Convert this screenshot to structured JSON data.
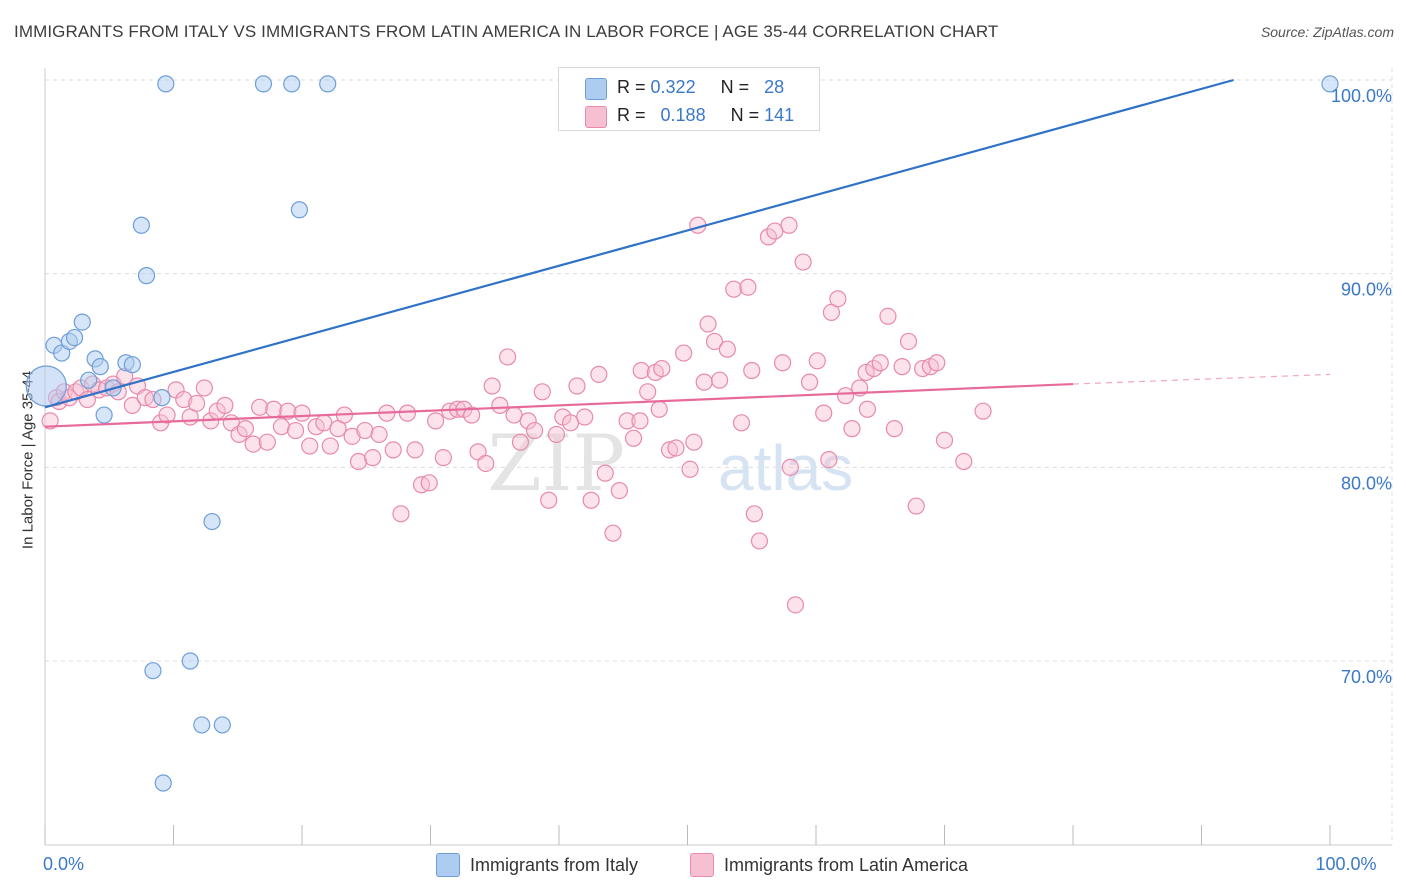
{
  "header": {
    "title": "IMMIGRANTS FROM ITALY VS IMMIGRANTS FROM LATIN AMERICA IN LABOR FORCE | AGE 35-44 CORRELATION CHART",
    "source": "Source: ZipAtlas.com"
  },
  "colors": {
    "italy_fill": "#aecbf0",
    "italy_stroke": "#6e9fd9",
    "italy_line": "#2f72c6",
    "latam_fill": "#f6bfd2",
    "latam_stroke": "#e88aab",
    "latam_line": "#e76b9a",
    "tick_label": "#3a78c9",
    "grid": "#dcdcdc"
  },
  "legend_stats": {
    "italy": {
      "r_label": "R =",
      "r_value": "0.322",
      "n_label": "N =",
      "n_value": "28"
    },
    "latam": {
      "r_label": "R =",
      "r_value": "0.188",
      "n_label": "N =",
      "n_value": "141"
    }
  },
  "watermark": {
    "part1": "ZIP",
    "part2": "atlas"
  },
  "chart_data": {
    "type": "scatter",
    "title": "IMMIGRANTS FROM ITALY VS IMMIGRANTS FROM LATIN AMERICA IN LABOR FORCE | AGE 35-44 CORRELATION CHART",
    "xlabel": "",
    "ylabel": "In Labor Force | Age 35-44",
    "xlim": [
      0,
      100
    ],
    "ylim": [
      60.5,
      100.5
    ],
    "x_tick_labels": [
      {
        "value": 0,
        "label": "0.0%"
      },
      {
        "value": 100,
        "label": "100.0%"
      }
    ],
    "y_ticks": [
      {
        "value": 70,
        "label": "70.0%"
      },
      {
        "value": 80,
        "label": "80.0%"
      },
      {
        "value": 90,
        "label": "90.0%"
      },
      {
        "value": 100,
        "label": "100.0%"
      }
    ],
    "x_minor_ticks": [
      0,
      10,
      20,
      30,
      40,
      50,
      60,
      70,
      80,
      90,
      100
    ],
    "legend": [
      "Immigrants from Italy",
      "Immigrants from Latin America"
    ],
    "series": [
      {
        "name": "Immigrants from Italy",
        "points": [
          [
            0.1,
            84.2
          ],
          [
            0.7,
            86.3
          ],
          [
            1.3,
            85.9
          ],
          [
            1.9,
            86.5
          ],
          [
            2.3,
            86.7
          ],
          [
            2.9,
            87.5
          ],
          [
            3.4,
            84.5
          ],
          [
            3.9,
            85.6
          ],
          [
            4.3,
            85.2
          ],
          [
            4.6,
            82.7
          ],
          [
            5.3,
            84.1
          ],
          [
            6.3,
            85.4
          ],
          [
            6.8,
            85.3
          ],
          [
            7.5,
            92.5
          ],
          [
            7.9,
            89.9
          ],
          [
            8.4,
            69.5
          ],
          [
            9.1,
            83.6
          ],
          [
            9.4,
            99.8
          ],
          [
            9.2,
            63.7
          ],
          [
            11.3,
            70.0
          ],
          [
            12.2,
            66.7
          ],
          [
            13.0,
            77.2
          ],
          [
            13.8,
            66.7
          ],
          [
            17.0,
            99.8
          ],
          [
            19.2,
            99.8
          ],
          [
            19.8,
            93.3
          ],
          [
            22.0,
            99.8
          ],
          [
            100.0,
            99.8
          ]
        ],
        "trend": {
          "x": [
            0,
            92.5
          ],
          "y": [
            83.1,
            100.0
          ]
        }
      },
      {
        "name": "Immigrants from Latin America",
        "points": [
          [
            0.4,
            82.4
          ],
          [
            0.9,
            83.6
          ],
          [
            1.1,
            83.4
          ],
          [
            1.5,
            83.9
          ],
          [
            1.9,
            83.6
          ],
          [
            2.4,
            83.9
          ],
          [
            2.8,
            84.1
          ],
          [
            3.3,
            83.5
          ],
          [
            3.7,
            84.3
          ],
          [
            4.2,
            84.0
          ],
          [
            4.8,
            84.1
          ],
          [
            5.3,
            84.3
          ],
          [
            5.7,
            83.9
          ],
          [
            6.2,
            84.7
          ],
          [
            6.8,
            83.2
          ],
          [
            7.2,
            84.2
          ],
          [
            7.8,
            83.6
          ],
          [
            8.4,
            83.5
          ],
          [
            9.0,
            82.3
          ],
          [
            9.5,
            82.7
          ],
          [
            10.2,
            84.0
          ],
          [
            10.8,
            83.5
          ],
          [
            11.3,
            82.6
          ],
          [
            11.8,
            83.3
          ],
          [
            12.4,
            84.1
          ],
          [
            12.9,
            82.4
          ],
          [
            13.4,
            82.9
          ],
          [
            14.0,
            83.2
          ],
          [
            14.5,
            82.3
          ],
          [
            15.1,
            81.7
          ],
          [
            15.6,
            82.0
          ],
          [
            16.2,
            81.2
          ],
          [
            16.7,
            83.1
          ],
          [
            17.3,
            81.3
          ],
          [
            17.8,
            83.0
          ],
          [
            18.4,
            82.1
          ],
          [
            18.9,
            82.9
          ],
          [
            19.5,
            81.9
          ],
          [
            20.0,
            82.8
          ],
          [
            20.6,
            81.1
          ],
          [
            21.1,
            82.1
          ],
          [
            21.7,
            82.3
          ],
          [
            22.2,
            81.1
          ],
          [
            22.8,
            82.0
          ],
          [
            23.3,
            82.7
          ],
          [
            23.9,
            81.6
          ],
          [
            24.4,
            80.3
          ],
          [
            24.9,
            81.9
          ],
          [
            25.5,
            80.5
          ],
          [
            26.0,
            81.7
          ],
          [
            26.6,
            82.8
          ],
          [
            27.1,
            80.9
          ],
          [
            27.7,
            77.6
          ],
          [
            28.2,
            82.8
          ],
          [
            28.8,
            80.9
          ],
          [
            29.3,
            79.1
          ],
          [
            29.9,
            79.2
          ],
          [
            30.4,
            82.4
          ],
          [
            31.0,
            80.5
          ],
          [
            31.5,
            82.9
          ],
          [
            32.1,
            83.0
          ],
          [
            32.6,
            83.0
          ],
          [
            33.2,
            82.7
          ],
          [
            33.7,
            80.8
          ],
          [
            34.3,
            80.2
          ],
          [
            34.8,
            84.2
          ],
          [
            35.4,
            83.2
          ],
          [
            36.0,
            85.7
          ],
          [
            36.5,
            82.7
          ],
          [
            37.0,
            81.3
          ],
          [
            37.6,
            82.4
          ],
          [
            38.1,
            81.9
          ],
          [
            38.7,
            83.9
          ],
          [
            39.2,
            78.3
          ],
          [
            39.8,
            81.7
          ],
          [
            40.3,
            82.6
          ],
          [
            40.9,
            82.3
          ],
          [
            41.4,
            84.2
          ],
          [
            42.0,
            82.6
          ],
          [
            42.5,
            78.3
          ],
          [
            43.1,
            84.8
          ],
          [
            43.6,
            79.7
          ],
          [
            44.2,
            76.6
          ],
          [
            44.7,
            78.8
          ],
          [
            45.3,
            82.4
          ],
          [
            45.8,
            81.5
          ],
          [
            46.4,
            85.0
          ],
          [
            46.9,
            83.9
          ],
          [
            47.5,
            84.9
          ],
          [
            48.0,
            85.1
          ],
          [
            48.6,
            80.9
          ],
          [
            49.1,
            81.0
          ],
          [
            49.7,
            85.9
          ],
          [
            50.2,
            79.9
          ],
          [
            50.8,
            92.5
          ],
          [
            51.3,
            84.4
          ],
          [
            51.6,
            87.4
          ],
          [
            52.1,
            86.5
          ],
          [
            52.5,
            84.5
          ],
          [
            53.1,
            86.1
          ],
          [
            53.6,
            89.2
          ],
          [
            54.2,
            82.3
          ],
          [
            54.7,
            89.3
          ],
          [
            55.2,
            77.6
          ],
          [
            55.6,
            76.2
          ],
          [
            56.3,
            91.9
          ],
          [
            56.8,
            92.2
          ],
          [
            57.4,
            85.4
          ],
          [
            57.9,
            92.5
          ],
          [
            58.4,
            72.9
          ],
          [
            59.0,
            90.6
          ],
          [
            59.5,
            84.4
          ],
          [
            60.1,
            85.5
          ],
          [
            60.6,
            82.8
          ],
          [
            61.2,
            88.0
          ],
          [
            61.7,
            88.7
          ],
          [
            62.3,
            83.7
          ],
          [
            62.8,
            82.0
          ],
          [
            63.4,
            84.1
          ],
          [
            63.9,
            84.9
          ],
          [
            64.5,
            85.1
          ],
          [
            65.0,
            85.4
          ],
          [
            65.6,
            87.8
          ],
          [
            66.1,
            82.0
          ],
          [
            66.7,
            85.2
          ],
          [
            67.2,
            86.5
          ],
          [
            67.8,
            78.0
          ],
          [
            68.3,
            85.1
          ],
          [
            68.9,
            85.2
          ],
          [
            69.4,
            85.4
          ],
          [
            70.0,
            81.4
          ],
          [
            71.5,
            80.3
          ],
          [
            73.0,
            82.9
          ],
          [
            46.3,
            82.4
          ],
          [
            47.8,
            83.0
          ],
          [
            50.5,
            81.3
          ],
          [
            55.0,
            85.0
          ],
          [
            58.0,
            80.0
          ],
          [
            61.0,
            80.4
          ],
          [
            64.0,
            83.0
          ]
        ],
        "trend": {
          "x": [
            0,
            80
          ],
          "y": [
            82.1,
            84.3
          ]
        },
        "trend_dashed": {
          "x": [
            80,
            100
          ],
          "y": [
            84.3,
            84.8
          ]
        }
      }
    ]
  }
}
